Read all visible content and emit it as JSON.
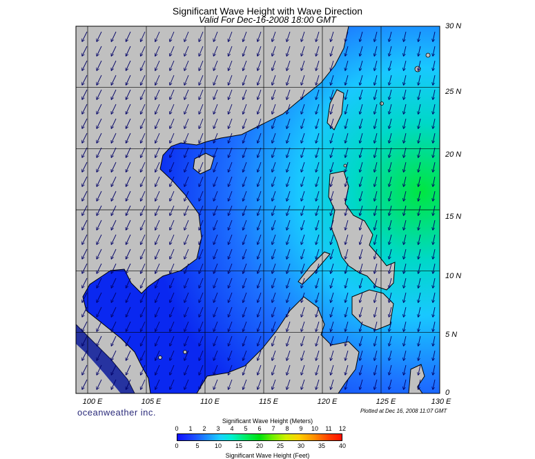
{
  "title": "Significant Wave Height with Wave Direction",
  "subtitle": "Valid For Dec-16-2008 18:00 GMT",
  "map": {
    "region": "South China Sea",
    "lon_range": [
      99,
      130
    ],
    "lat_range": [
      0,
      30
    ],
    "lat_labels": [
      "30 N",
      "25 N",
      "20 N",
      "15 N",
      "10 N",
      "5 N",
      "0"
    ],
    "lon_labels": [
      "100 E",
      "105 E",
      "110 E",
      "115 E",
      "120 E",
      "125 E",
      "130 E"
    ],
    "grid": true,
    "arrow_direction": "toward southwest",
    "colors": {
      "land": "#c0c0c0",
      "coast": "#000000",
      "sea_low": "#0a28f0",
      "sea_mid": "#19d0ff",
      "sea_high": "#00e640"
    }
  },
  "branding": "oceanweather inc.",
  "plotted": "Plotted at Dec 16, 2008 11:07 GMT",
  "colorbar": {
    "title_meters": "Significant Wave Height (Meters)",
    "title_feet": "Significant Wave Height (Feet)",
    "meters_ticks": [
      "0",
      "1",
      "2",
      "3",
      "4",
      "5",
      "6",
      "7",
      "8",
      "9",
      "10",
      "11",
      "12"
    ],
    "feet_ticks": [
      "0",
      "5",
      "10",
      "15",
      "20",
      "25",
      "30",
      "35",
      "40"
    ]
  }
}
